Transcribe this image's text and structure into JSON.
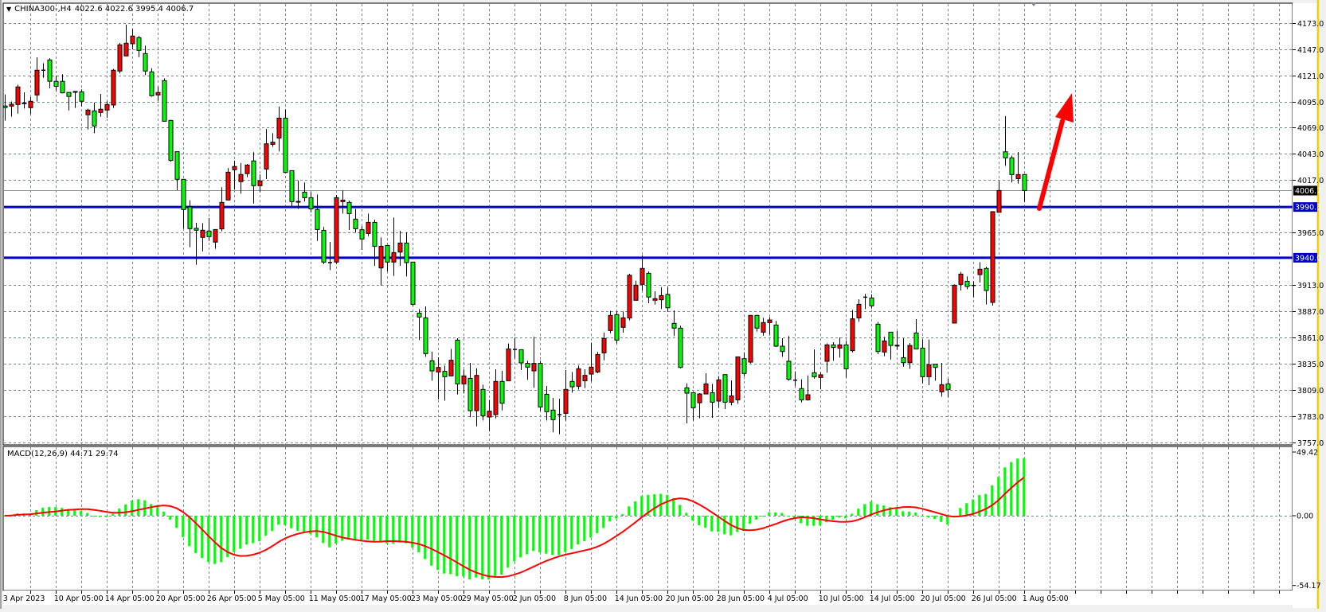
{
  "header": {
    "symbol": "CHINA300-,H4",
    "ohlc": "4022.6 4022.6 3995.4 4006.7",
    "menu_icon": "triangle-down-icon"
  },
  "colors": {
    "bull_candle": "#ff0000",
    "bear_candle": "#00ff00",
    "support_lines": "#0000cc",
    "macd_histogram": "#00ff00",
    "macd_signal": "#ff0000",
    "annotation_arrow": "#ff0000",
    "grid": "#778899"
  },
  "chart_data": {
    "type": "candlestick",
    "symbol": "CHINA300-",
    "timeframe": "H4",
    "y_range": [
      3757.0,
      4173.0
    ],
    "price_ticks": [
      "4173.0",
      "4147.0",
      "4121.0",
      "4095.0",
      "4069.0",
      "4043.0",
      "4017.0",
      "3965.0",
      "3913.0",
      "3887.0",
      "3861.0",
      "3835.0",
      "3809.0",
      "3783.0",
      "3757.0"
    ],
    "price_tick_values": [
      4173,
      4147,
      4121,
      4095,
      4069,
      4043,
      4017,
      3965,
      3913,
      3887,
      3861,
      3835,
      3809,
      3783,
      3757
    ],
    "current_price": {
      "value": 4006.7,
      "label": "4006.7"
    },
    "horizontal_lines": [
      {
        "value": 3990.3,
        "label": "3990.3"
      },
      {
        "value": 3940.0,
        "label": "3940.0"
      }
    ],
    "time_labels": [
      "3 Apr 2023",
      "10 Apr 05:00",
      "14 Apr 05:00",
      "20 Apr 05:00",
      "26 Apr 05:00",
      "5 May 05:00",
      "11 May 05:00",
      "17 May 05:00",
      "23 May 05:00",
      "29 May 05:00",
      "2 Jun 05:00",
      "8 Jun 05:00",
      "14 Jun 05:00",
      "20 Jun 05:00",
      "28 Jun 05:00",
      "4 Jul 05:00",
      "10 Jul 05:00",
      "14 Jul 05:00",
      "20 Jul 05:00",
      "26 Jul 05:00",
      "1 Aug 05:00"
    ],
    "time_label_every_n_bars": 8,
    "grid": true,
    "ohlc": [
      [
        4090.5,
        4102,
        4076,
        4089
      ],
      [
        4090.4,
        4095,
        4080,
        4092.3
      ],
      [
        4092,
        4111.7,
        4083,
        4109.4
      ],
      [
        4093.6,
        4104,
        4088,
        4093
      ],
      [
        4088.9,
        4099.4,
        4082.5,
        4095.2
      ],
      [
        4101.5,
        4138.8,
        4095,
        4126
      ],
      [
        4126,
        4133,
        4118.6,
        4126
      ],
      [
        4136.2,
        4137.8,
        4108,
        4115
      ],
      [
        4115,
        4120.7,
        4106,
        4110
      ],
      [
        4115,
        4122,
        4103,
        4103.6
      ],
      [
        4104,
        4104,
        4086,
        4100
      ],
      [
        4104.9,
        4105.5,
        4088.6,
        4104.6
      ],
      [
        4104.6,
        4107,
        4090,
        4095.2
      ],
      [
        4081.8,
        4087.8,
        4067.3,
        4086.5
      ],
      [
        4085.7,
        4093.9,
        4063.6,
        4070.7
      ],
      [
        4084.1,
        4102.5,
        4079.9,
        4087.3
      ],
      [
        4086.5,
        4095.2,
        4078.9,
        4092
      ],
      [
        4091.5,
        4127.3,
        4088.6,
        4126
      ],
      [
        4125.2,
        4153,
        4122.8,
        4151.2
      ],
      [
        4140.2,
        4171.2,
        4140.2,
        4152.8
      ],
      [
        4152.3,
        4166.7,
        4147,
        4159.9
      ],
      [
        4158.3,
        4160,
        4139,
        4145.7
      ],
      [
        4142.5,
        4150.4,
        4121.2,
        4125.2
      ],
      [
        4124.4,
        4128,
        4099.6,
        4100.7
      ],
      [
        4101.5,
        4109.6,
        4095.7,
        4103.9
      ],
      [
        4115.7,
        4118,
        4075.4,
        4075.4
      ],
      [
        4076.2,
        4076.7,
        4035.2,
        4036.5
      ],
      [
        4045.2,
        4045.2,
        4007,
        4017.8
      ],
      [
        4017.8,
        4017.8,
        3968.9,
        3987.8
      ],
      [
        3990.5,
        3997,
        3950.5,
        3968.9
      ],
      [
        3969.2,
        3974.7,
        3933,
        3967.3
      ],
      [
        3960.2,
        3974.2,
        3946.3,
        3967.3
      ],
      [
        3966.5,
        3979.4,
        3956.8,
        3961
      ],
      [
        3955.5,
        3968,
        3948.9,
        3968
      ],
      [
        3968.6,
        4010,
        3966.3,
        3994.9
      ],
      [
        3997.3,
        4029,
        3997.3,
        4024.9
      ],
      [
        4027.3,
        4036.2,
        4007.6,
        4030.5
      ],
      [
        4015.5,
        4033.9,
        4003.6,
        4022.6
      ],
      [
        4023.4,
        4033,
        4019.9,
        4032
      ],
      [
        4036,
        4044.7,
        3993.9,
        4011.5
      ],
      [
        4011.5,
        4022.6,
        4004.9,
        4016.2
      ],
      [
        4028,
        4067.7,
        4018,
        4053
      ],
      [
        4052.5,
        4063.5,
        4050,
        4054.6
      ],
      [
        4058.8,
        4090,
        4045.6,
        4078.5
      ],
      [
        4078.5,
        4087,
        4024,
        4024.6
      ],
      [
        4026.4,
        4026.4,
        3991,
        3995.7
      ],
      [
        3995.9,
        4016.7,
        3988.3,
        3995.5
      ],
      [
        4005,
        4014.6,
        3995.7,
        3999.6
      ],
      [
        3999.6,
        4005,
        3985,
        3988.5
      ],
      [
        3987.8,
        4002.8,
        3956.7,
        3968
      ],
      [
        3967.2,
        3970.6,
        3933.8,
        3935.7
      ],
      [
        3935.2,
        3955.7,
        3927.8,
        3935.2
      ],
      [
        3935.7,
        4002.2,
        3934,
        3999.6
      ],
      [
        3995.7,
        4006.7,
        3983.8,
        3997.2
      ],
      [
        3994.9,
        3996.7,
        3967.5,
        3983.8
      ],
      [
        3978.3,
        3988.3,
        3964.9,
        3968.8
      ],
      [
        3967.8,
        3971.4,
        3947.8,
        3958.6
      ],
      [
        3964.1,
        3983.8,
        3961.5,
        3975.1
      ],
      [
        3975.1,
        3977.8,
        3932,
        3951.4
      ],
      [
        3929.9,
        3960.1,
        3912.5,
        3951.4
      ],
      [
        3952.2,
        3952.2,
        3926.5,
        3935.7
      ],
      [
        3935.7,
        3979.9,
        3922,
        3945.1
      ],
      [
        3945.6,
        3966.7,
        3932,
        3954.6
      ],
      [
        3954.6,
        3965.4,
        3921.5,
        3935.2
      ],
      [
        3935.7,
        3935.7,
        3892.5,
        3893.8
      ],
      [
        3885.1,
        3889.1,
        3858.3,
        3881.2
      ],
      [
        3880.4,
        3891.7,
        3841.7,
        3844.9
      ],
      [
        3837.8,
        3846.7,
        3818,
        3827.8
      ],
      [
        3826.7,
        3841.2,
        3799.6,
        3831.2
      ],
      [
        3827.3,
        3833,
        3798.3,
        3822
      ],
      [
        3822.8,
        3849.6,
        3822.8,
        3838.3
      ],
      [
        3858.3,
        3860.1,
        3804.4,
        3814.9
      ],
      [
        3814.9,
        3829.1,
        3805.4,
        3822.8
      ],
      [
        3820.4,
        3835.7,
        3781.8,
        3788.3
      ],
      [
        3788.3,
        3830.4,
        3772.8,
        3823.3
      ],
      [
        3809.4,
        3814.1,
        3778.6,
        3783.3
      ],
      [
        3782,
        3799.1,
        3768,
        3787.8
      ],
      [
        3784.4,
        3829.4,
        3780.7,
        3817.3
      ],
      [
        3817.3,
        3827.8,
        3788.6,
        3795.7
      ],
      [
        3818,
        3854.9,
        3818,
        3849.6
      ],
      [
        3849.1,
        3860.7,
        3840.4,
        3849.1
      ],
      [
        3848.8,
        3849,
        3828.6,
        3835.7
      ],
      [
        3835.2,
        3837.8,
        3818.9,
        3831.5
      ],
      [
        3827.8,
        3861.5,
        3811,
        3835.2
      ],
      [
        3835.2,
        3837.8,
        3787.8,
        3792
      ],
      [
        3804.6,
        3812.8,
        3778.6,
        3787.3
      ],
      [
        3788.9,
        3801,
        3766.8,
        3779.4
      ],
      [
        3784.4,
        3800.2,
        3765,
        3784.4
      ],
      [
        3785.7,
        3828.6,
        3778.6,
        3809.4
      ],
      [
        3817.3,
        3826.7,
        3806.2,
        3812
      ],
      [
        3812.5,
        3833,
        3809.4,
        3829.9
      ],
      [
        3818,
        3829.4,
        3810.7,
        3823.3
      ],
      [
        3824.6,
        3855.7,
        3817.3,
        3831.5
      ],
      [
        3826.7,
        3846.7,
        3825.4,
        3844.1
      ],
      [
        3845.7,
        3865.7,
        3838.3,
        3859.9
      ],
      [
        3867.8,
        3887.3,
        3865.2,
        3882.8
      ],
      [
        3883.6,
        3886.7,
        3854.9,
        3858.3
      ],
      [
        3871,
        3886.7,
        3865.7,
        3880.4
      ],
      [
        3880.2,
        3924.1,
        3877.8,
        3922.6
      ],
      [
        3897.8,
        3917.3,
        3897.8,
        3912.8
      ],
      [
        3913.6,
        3942.5,
        3907.5,
        3929.4
      ],
      [
        3924.6,
        3926.5,
        3894.9,
        3901
      ],
      [
        3897.8,
        3906.7,
        3893.6,
        3899.4
      ],
      [
        3898.3,
        3910.9,
        3889.1,
        3902.5
      ],
      [
        3903.6,
        3910.9,
        3886.5,
        3890.4
      ],
      [
        3874.9,
        3887.8,
        3862.3,
        3870.2
      ],
      [
        3870.2,
        3872.5,
        3830.4,
        3831.2
      ],
      [
        3811,
        3815.4,
        3775.7,
        3805.7
      ],
      [
        3806.2,
        3806.2,
        3778.6,
        3791.2
      ],
      [
        3796.2,
        3805.7,
        3780.7,
        3804.9
      ],
      [
        3804.9,
        3825.4,
        3804.9,
        3814.9
      ],
      [
        3806.2,
        3814.9,
        3781.2,
        3796.7
      ],
      [
        3797.8,
        3822.5,
        3791,
        3818.9
      ],
      [
        3824.1,
        3824.1,
        3789.9,
        3796.7
      ],
      [
        3796.7,
        3818.3,
        3793.6,
        3803
      ],
      [
        3799.1,
        3841.7,
        3795.2,
        3841.7
      ],
      [
        3839.9,
        3846.2,
        3822.5,
        3825.2
      ],
      [
        3836.5,
        3883.2,
        3835.2,
        3882.8
      ],
      [
        3882.8,
        3883.4,
        3866.8,
        3870.2
      ],
      [
        3866.2,
        3880.4,
        3862.8,
        3875.7
      ],
      [
        3875.7,
        3881.2,
        3863.6,
        3878.3
      ],
      [
        3873.3,
        3877.3,
        3851.5,
        3852.3
      ],
      [
        3852.3,
        3860.2,
        3841.7,
        3847
      ],
      [
        3837.3,
        3862.3,
        3818,
        3819.4
      ],
      [
        3818.6,
        3827.3,
        3812.8,
        3818.6
      ],
      [
        3810.2,
        3819.4,
        3796.5,
        3799.1
      ],
      [
        3799.1,
        3823.3,
        3798.3,
        3804.1
      ],
      [
        3826,
        3849.1,
        3820.2,
        3822
      ],
      [
        3821.2,
        3826.5,
        3809.6,
        3823.9
      ],
      [
        3837.3,
        3855,
        3826,
        3853.6
      ],
      [
        3853.6,
        3856.2,
        3837.8,
        3851
      ],
      [
        3850.4,
        3861,
        3841,
        3853.6
      ],
      [
        3853.6,
        3857.5,
        3821.2,
        3829.9
      ],
      [
        3847.8,
        3888.3,
        3846.2,
        3879.4
      ],
      [
        3880.4,
        3898.8,
        3876.5,
        3893.8
      ],
      [
        3900.9,
        3904.1,
        3889.1,
        3900.9
      ],
      [
        3900.1,
        3903.6,
        3889.6,
        3892.3
      ],
      [
        3874.1,
        3876.5,
        3844.4,
        3847
      ],
      [
        3846.5,
        3861.5,
        3842.3,
        3857.5
      ],
      [
        3866.2,
        3866.2,
        3839.1,
        3853
      ],
      [
        3853.2,
        3867.3,
        3848.8,
        3853
      ],
      [
        3840.9,
        3860.2,
        3832,
        3835.9
      ],
      [
        3835.9,
        3855.4,
        3829.9,
        3853
      ],
      [
        3865.4,
        3879.1,
        3849.6,
        3849.6
      ],
      [
        3850.4,
        3858.8,
        3815.4,
        3822
      ],
      [
        3822,
        3858.8,
        3813.6,
        3833.8
      ],
      [
        3834.4,
        3834.4,
        3818,
        3831.2
      ],
      [
        3807,
        3835.7,
        3802.3,
        3814.1
      ],
      [
        3814.9,
        3819.9,
        3801.5,
        3809.4
      ],
      [
        3875.2,
        3913.6,
        3875.2,
        3912.8
      ],
      [
        3913.6,
        3925.9,
        3907.5,
        3923.8
      ],
      [
        3916.7,
        3921.5,
        3908.8,
        3911.5
      ],
      [
        3912.5,
        3916.7,
        3900.9,
        3912.5
      ],
      [
        3923.3,
        3935.7,
        3915.4,
        3928.6
      ],
      [
        3929.4,
        3931.2,
        3893.6,
        3907.5
      ],
      [
        3895.7,
        3985.7,
        3892.5,
        3985.7
      ],
      [
        3985.1,
        4016.2,
        3985.1,
        4006.7
      ],
      [
        4045.1,
        4080.4,
        4031.2,
        4039.1
      ],
      [
        4039.1,
        4041.2,
        4014.6,
        4022.5
      ],
      [
        4018.5,
        4044.9,
        4013.5,
        4022.5
      ],
      [
        4022.6,
        4022.6,
        3995.4,
        4006.7
      ]
    ],
    "annotation": {
      "type": "arrow",
      "direction": "up"
    },
    "indicator": {
      "label": "MACD(12,26,9) 44.71 29.74",
      "name": "MACD",
      "params": [
        12,
        26,
        9
      ],
      "macd_value": 44.71,
      "signal_value": 29.74,
      "y_range": [
        -54.17,
        49.42
      ],
      "ticks": [
        "49.42",
        "0.00",
        "-54.17"
      ],
      "tick_values": [
        49.42,
        0,
        -54.17
      ]
    }
  }
}
